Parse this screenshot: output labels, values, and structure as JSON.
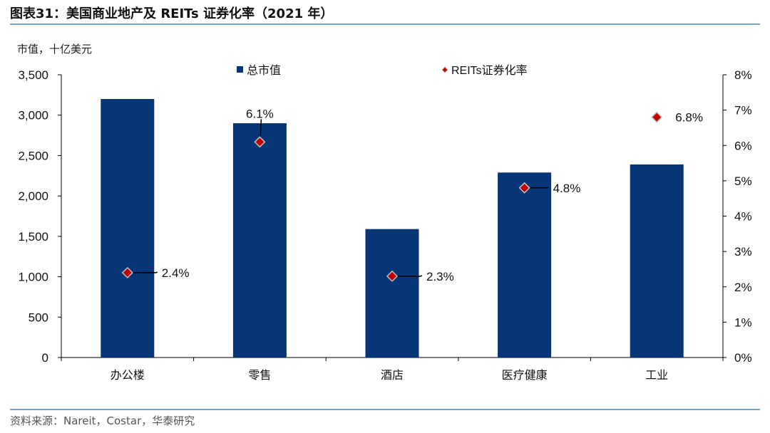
{
  "header": {
    "title": "图表31：美国商业地产及 REITs 证券化率（2021 年）",
    "unit_label": "市值，十亿美元",
    "source": "资料来源：Nareit，Costar，华泰研究"
  },
  "colors": {
    "bar": "#063675",
    "diamond": "#c00000",
    "diamond_edge": "#bfbfbf",
    "rule": "#7aa3c8",
    "axis": "#000000"
  },
  "chart_data": {
    "type": "bar",
    "categories": [
      "办公楼",
      "零售",
      "酒店",
      "医疗健康",
      "工业"
    ],
    "series": [
      {
        "name": "总市值",
        "type": "bar",
        "axis": "left",
        "values": [
          3200,
          2900,
          1590,
          2290,
          2390
        ]
      },
      {
        "name": "REITs证券化率",
        "type": "scatter",
        "axis": "right",
        "values": [
          2.4,
          6.1,
          2.3,
          4.8,
          6.8
        ],
        "labels": [
          "2.4%",
          "6.1%",
          "2.3%",
          "4.8%",
          "6.8%"
        ]
      }
    ],
    "y_left": {
      "min": 0,
      "max": 3500,
      "ticks": [
        "0",
        "500",
        "1,000",
        "1,500",
        "2,000",
        "2,500",
        "3,000",
        "3,500"
      ]
    },
    "y_right": {
      "min": 0,
      "max": 8,
      "ticks": [
        "0%",
        "1%",
        "2%",
        "3%",
        "4%",
        "5%",
        "6%",
        "7%",
        "8%"
      ]
    },
    "legend_position": "top",
    "grid": false
  }
}
